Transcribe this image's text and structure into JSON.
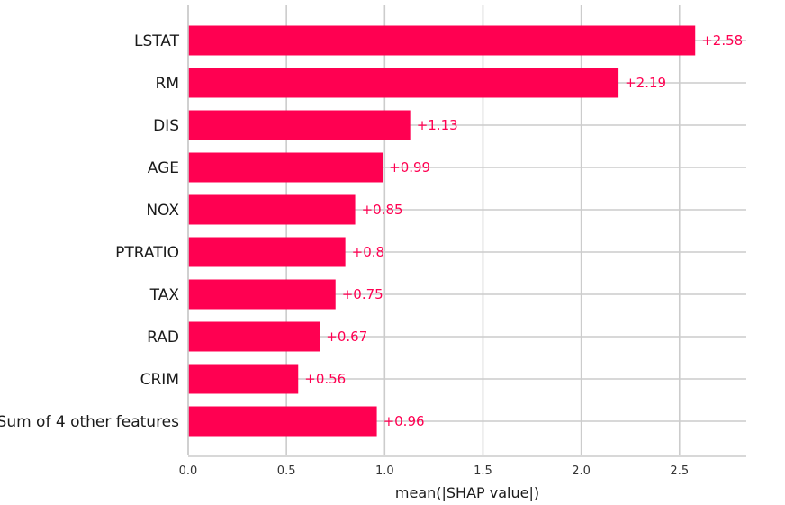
{
  "chart_data": {
    "type": "bar",
    "orientation": "horizontal",
    "categories": [
      "LSTAT",
      "RM",
      "DIS",
      "AGE",
      "NOX",
      "PTRATIO",
      "TAX",
      "RAD",
      "CRIM",
      "Sum of 4 other features"
    ],
    "values": [
      2.58,
      2.19,
      1.13,
      0.99,
      0.85,
      0.8,
      0.75,
      0.67,
      0.56,
      0.96
    ],
    "value_labels": [
      "+2.58",
      "+2.19",
      "+1.13",
      "+0.99",
      "+0.85",
      "+0.8",
      "+0.75",
      "+0.67",
      "+0.56",
      "+0.96"
    ],
    "title": "",
    "xlabel": "mean(|SHAP value|)",
    "ylabel": "",
    "xlim": [
      0,
      2.84
    ],
    "xticks": [
      0,
      0.5,
      1,
      1.5,
      2,
      2.5
    ],
    "xtick_labels": [
      "0.0",
      "0.5",
      "1.0",
      "1.5",
      "2.0",
      "2.5"
    ],
    "grid": true,
    "legend": "none"
  },
  "colors": {
    "bar": "#ff0051",
    "grid": "#cccccc",
    "axis": "#cccccc"
  }
}
